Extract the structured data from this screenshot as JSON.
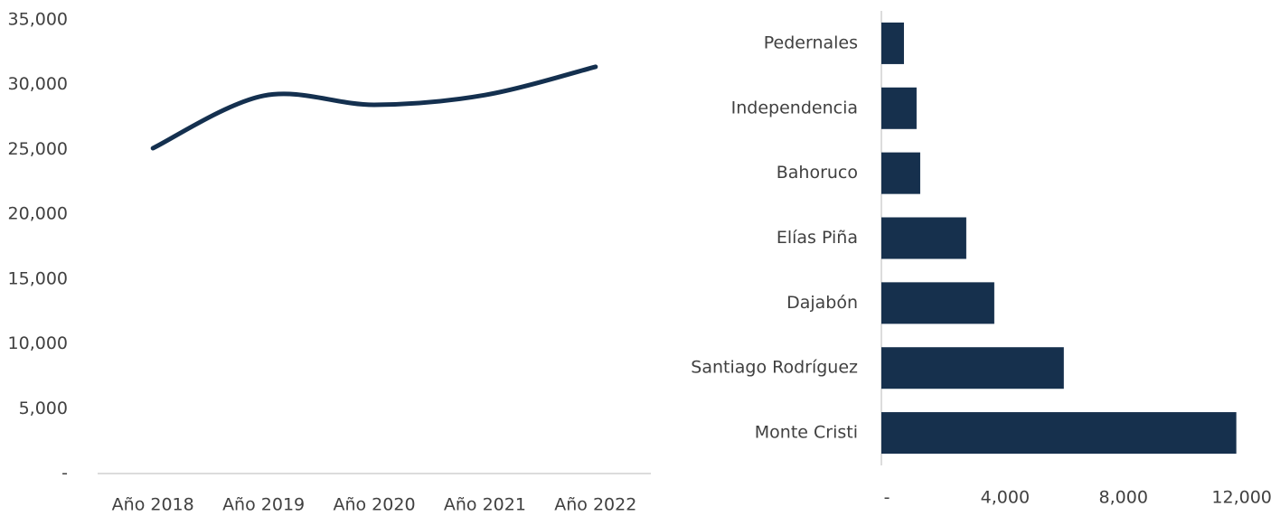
{
  "chart_data": [
    {
      "type": "line",
      "categories": [
        "Año 2018",
        "Año 2019",
        "Año 2020",
        "Año 2021",
        "Año 2022"
      ],
      "series": [
        {
          "color": "#14304f",
          "values": [
            25100,
            29150,
            28450,
            29200,
            31380
          ]
        }
      ],
      "ylim": [
        0,
        35000
      ],
      "yticks": [
        {
          "value": 0,
          "label": "-"
        },
        {
          "value": 5000,
          "label": "5,000"
        },
        {
          "value": 10000,
          "label": "10,000"
        },
        {
          "value": 15000,
          "label": "15,000"
        },
        {
          "value": 20000,
          "label": "20,000"
        },
        {
          "value": 25000,
          "label": "25,000"
        },
        {
          "value": 30000,
          "label": "30,000"
        },
        {
          "value": 35000,
          "label": "35,000"
        }
      ]
    },
    {
      "type": "hbar",
      "categories": [
        "Pedernales",
        "Independencia",
        "Bahoruco",
        "Elías Piña",
        "Dajabón",
        "Santiago Rodríguez",
        "Monte Cristi"
      ],
      "values": [
        763,
        1190,
        1313,
        2870,
        3817,
        6168,
        12000
      ],
      "color": "#16304d",
      "xlim": [
        0,
        12500
      ],
      "xticks": [
        {
          "value": 0,
          "label": "-"
        },
        {
          "value": 4000,
          "label": "4,000"
        },
        {
          "value": 8000,
          "label": "8,000"
        },
        {
          "value": 12000,
          "label": "12,000"
        }
      ]
    }
  ]
}
